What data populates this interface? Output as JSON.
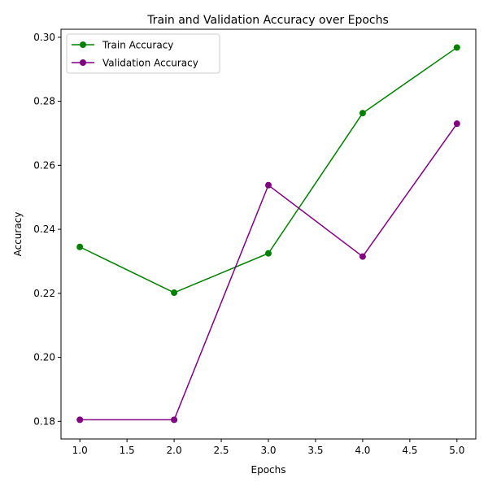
{
  "chart_data": {
    "type": "line",
    "title": "Train and Validation Accuracy over Epochs",
    "xlabel": "Epochs",
    "ylabel": "Accuracy",
    "x": [
      1,
      2,
      3,
      4,
      5
    ],
    "xlim": [
      0.8,
      5.2
    ],
    "ylim": [
      0.1745,
      0.3025
    ],
    "xticks": [
      "1.0",
      "1.5",
      "2.0",
      "2.5",
      "3.0",
      "3.5",
      "4.0",
      "4.5",
      "5.0"
    ],
    "yticks": [
      "0.18",
      "0.20",
      "0.22",
      "0.24",
      "0.26",
      "0.28",
      "0.30"
    ],
    "grid": false,
    "legend_position": "upper-left",
    "series": [
      {
        "name": "Train Accuracy",
        "color": "#008000",
        "values": [
          0.2345,
          0.2202,
          0.2325,
          0.2763,
          0.2968
        ]
      },
      {
        "name": "Validation Accuracy",
        "color": "#800080",
        "values": [
          0.1805,
          0.1805,
          0.2538,
          0.2315,
          0.273
        ]
      }
    ]
  }
}
